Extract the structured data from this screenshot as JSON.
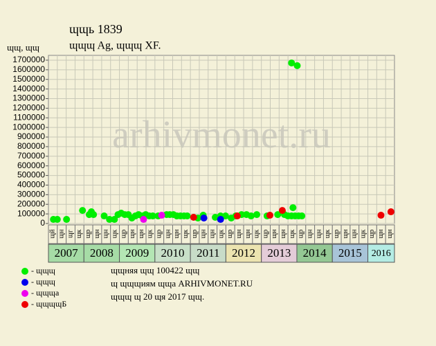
{
  "chart_data": {
    "type": "scatter",
    "title": "ɰɰь 1839",
    "subtitle": "ɰɰɰ Ag, ɰɰɰ XF.",
    "y_label": "ɰɰ, ɰɰ",
    "watermark": "arhivmonet.ru",
    "xlim": [
      2007,
      2016.75
    ],
    "xticks": [
      2007,
      2008,
      2009,
      2010,
      2011,
      2012,
      2013,
      2014,
      2015,
      2016
    ],
    "year_colors": [
      "#a6dca6",
      "#a6dca6",
      "#b4e6b4",
      "#c8e0c8",
      "#c8dcc8",
      "#ece4b0",
      "#e4ccd8",
      "#94c894",
      "#a8c4d8",
      "#b4ece4"
    ],
    "period_labels": [
      "ɰй",
      "ɰн",
      "ɰг",
      "ɰк",
      "ɰр",
      "ɰн",
      "ɰн",
      "ɰк",
      "ɰр",
      "ɰн",
      "ɰн",
      "ɰк",
      "ɰр",
      "ɰн",
      "ɰн",
      "ɰк",
      "ɰр",
      "ɰн",
      "ɰн",
      "ɰк",
      "ɰр",
      "ɰн",
      "ɰн",
      "ɰк",
      "ɰр",
      "ɰн",
      "ɰн",
      "ɰк",
      "ɰр",
      "ɰн",
      "ɰн",
      "ɰк",
      "ɰр",
      "ɰн",
      "ɰн",
      "ɰк",
      "ɰр",
      "ɰн",
      "ɰн"
    ],
    "ylim": [
      0,
      1750000
    ],
    "yticks": [
      0,
      100000,
      200000,
      300000,
      400000,
      500000,
      600000,
      700000,
      800000,
      900000,
      1000000,
      1100000,
      1200000,
      1300000,
      1400000,
      1500000,
      1600000,
      1700000
    ],
    "grid": true,
    "series": [
      {
        "name": "- ɰɰɰ",
        "color": "#00ee00",
        "x": [
          2007.14,
          2007.25,
          2007.51,
          2007.96,
          2008.15,
          2008.21,
          2008.27,
          2008.57,
          2008.72,
          2008.86,
          2008.96,
          2009.05,
          2009.15,
          2009.25,
          2009.35,
          2009.45,
          2009.54,
          2009.64,
          2009.74,
          2009.84,
          2009.94,
          2010.09,
          2010.33,
          2010.42,
          2010.52,
          2010.62,
          2010.72,
          2010.82,
          2010.91,
          2011.21,
          2011.36,
          2011.7,
          2011.85,
          2011.99,
          2012.15,
          2012.28,
          2012.44,
          2012.58,
          2012.71,
          2012.87,
          2013.16,
          2013.46,
          2013.65,
          2013.75,
          2013.85,
          2013.89,
          2013.95,
          2014.05,
          2014.14,
          2013.85,
          2014.01
        ],
        "values": [
          43000,
          43000,
          43000,
          136000,
          93000,
          122000,
          93000,
          79000,
          43000,
          43000,
          93000,
          108000,
          93000,
          93000,
          57000,
          79000,
          93000,
          79000,
          93000,
          79000,
          79000,
          79000,
          93000,
          93000,
          93000,
          79000,
          79000,
          79000,
          79000,
          57000,
          86000,
          65000,
          79000,
          79000,
          57000,
          79000,
          93000,
          93000,
          79000,
          93000,
          79000,
          93000,
          93000,
          79000,
          79000,
          165000,
          79000,
          79000,
          79000,
          1671000,
          1643000
        ]
      },
      {
        "name": "- ɰɰɰ",
        "color": "#0000ee",
        "x": [
          2011.38,
          2011.85
        ],
        "values": [
          57000,
          43000
        ]
      },
      {
        "name": "- ɰɰɰа",
        "color": "#ee00ee",
        "x": [
          2009.68,
          2010.19
        ],
        "values": [
          43000,
          86000
        ]
      },
      {
        "name": "- ɰɰɰɰБ",
        "color": "#ee0000",
        "x": [
          2011.09,
          2012.32,
          2013.24,
          2013.59,
          2016.37,
          2016.65
        ],
        "values": [
          65000,
          79000,
          86000,
          136000,
          86000,
          122000
        ]
      }
    ],
    "footer": [
      "ɰɰняя ɰɰ 100422 ɰɰ",
      "ɰ ɰɰɰиям ɰɰа ARHIVMONET.RU",
      "ɰɰɰ ɰ 20 ɰя 2017 ɰɰ."
    ]
  }
}
